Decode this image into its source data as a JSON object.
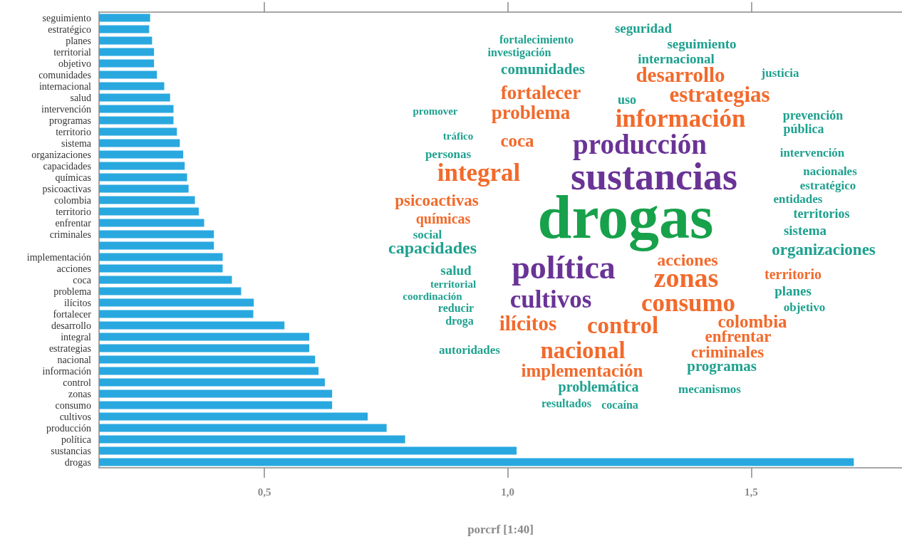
{
  "chart_data": {
    "type": "bar",
    "orientation": "horizontal",
    "xlabel": "porcrf [1:40]",
    "categories": [
      "seguimiento",
      "estratégico",
      "planes",
      "territorial",
      "objetivo",
      "comunidades",
      "internacional",
      "salud",
      "intervención",
      "programas",
      "territorio",
      "sistema",
      "organizaciones",
      "capacidades",
      "químicas",
      "psicoactivas",
      "colombia",
      "territorio",
      "enfrentar",
      "criminales",
      null,
      "implementación",
      "acciones",
      "coca",
      "problema",
      "ilícitos",
      "fortalecer",
      "desarrollo",
      "integral",
      "estrategias",
      "nacional",
      "información",
      "control",
      "zonas",
      "consumo",
      "cultivos",
      "producción",
      "política",
      "sustancias",
      "drogas"
    ],
    "values": [
      0.265,
      0.263,
      0.269,
      0.273,
      0.273,
      0.279,
      0.294,
      0.306,
      0.313,
      0.313,
      0.32,
      0.326,
      0.333,
      0.336,
      0.341,
      0.344,
      0.357,
      0.365,
      0.376,
      0.396,
      0.396,
      0.414,
      0.414,
      0.433,
      0.452,
      0.478,
      0.477,
      0.541,
      0.592,
      0.592,
      0.604,
      0.611,
      0.624,
      0.639,
      0.639,
      0.712,
      0.751,
      0.789,
      1.018,
      1.711
    ],
    "color": "#29a8e0",
    "xlim": [
      0.16,
      1.81
    ],
    "xticks": [
      {
        "value": 0.5,
        "label": "0,5"
      },
      {
        "value": 1.0,
        "label": "1,0"
      },
      {
        "value": 1.5,
        "label": "1,5"
      }
    ],
    "annotations": [
      "seguridad",
      "fortalecimiento",
      "seguimiento",
      "investigación",
      "internacional",
      "comunidades",
      "desarrollo",
      "justicia",
      "fortalecer",
      "estrategias",
      "uso",
      "promover",
      "problema",
      "información",
      "prevención",
      "pública",
      "tráfico",
      "coca",
      "producción",
      "personas",
      "intervención",
      "integral",
      "sustancias",
      "nacionales",
      "estratégico",
      "psicoactivas",
      "entidades",
      "drogas",
      "químicas",
      "territorios",
      "social",
      "sistema",
      "capacidades",
      "organizaciones",
      "política",
      "acciones",
      "salud",
      "zonas",
      "territorio",
      "territorial",
      "coordinación",
      "cultivos",
      "consumo",
      "planes",
      "reducir",
      "objetivo",
      "droga",
      "ilícitos",
      "control",
      "colombia",
      "enfrentar",
      "autoridades",
      "nacional",
      "criminales",
      "implementación",
      "programas",
      "problemática",
      "mecanismos",
      "resultados",
      "cocaína"
    ]
  }
}
